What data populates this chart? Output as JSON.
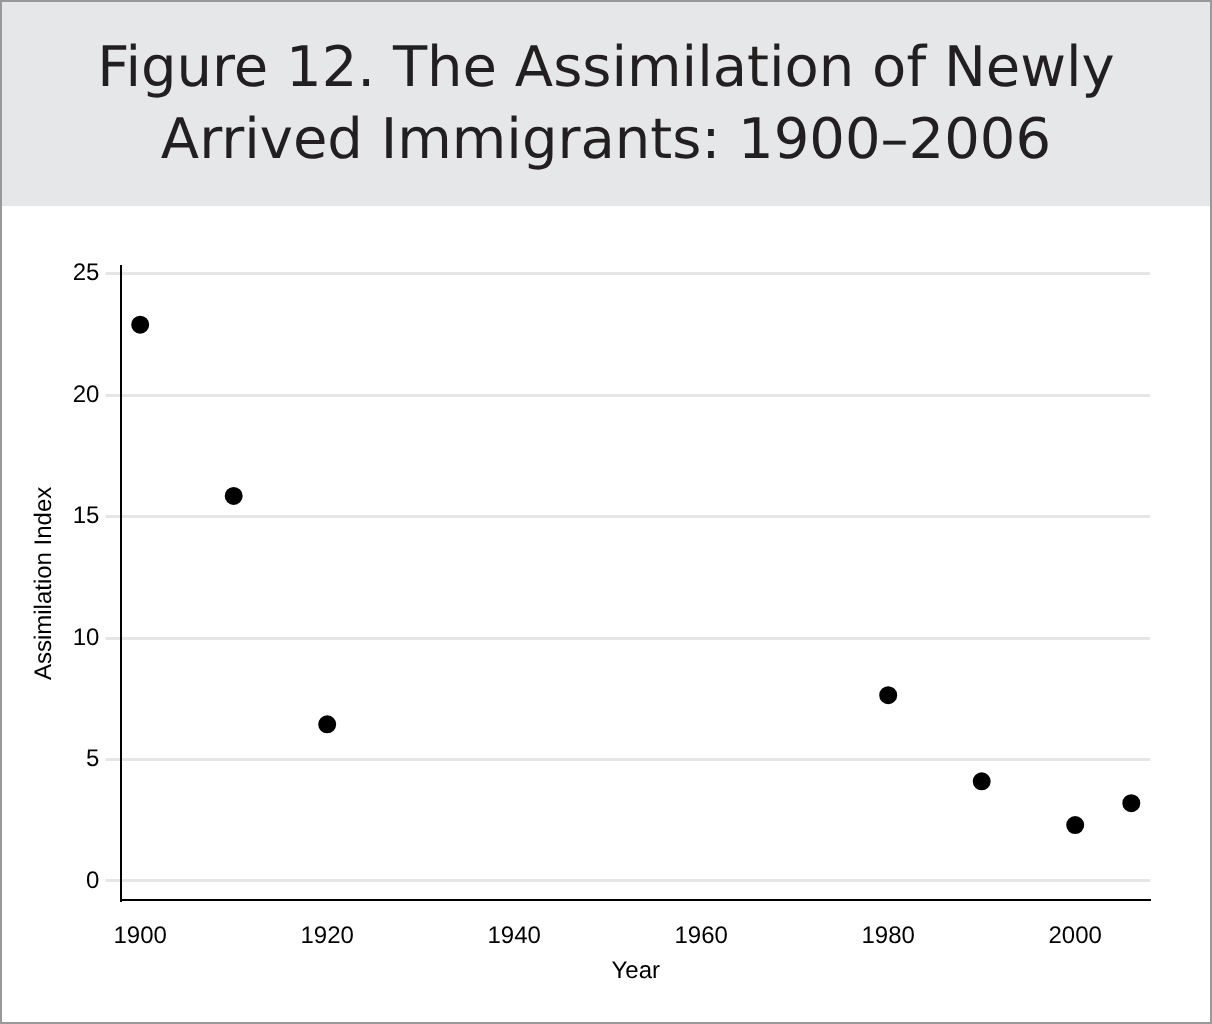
{
  "chart_data": {
    "type": "scatter",
    "title": "Figure 12. The Assimilation of Newly Arrived Immigrants: 1900–2006",
    "xlabel": "Year",
    "ylabel": "Assimilation Index",
    "x": [
      1900,
      1910,
      1920,
      1980,
      1990,
      2000,
      2006
    ],
    "series": [
      {
        "color": "#000000",
        "values": [
          22.9,
          15.85,
          6.45,
          7.65,
          4.1,
          2.3,
          3.2
        ]
      }
    ],
    "xlim": [
      1898,
      2008
    ],
    "xticks": [
      1900,
      1920,
      1940,
      1960,
      1980,
      2000
    ],
    "ylim": [
      -0.8,
      25.3
    ],
    "yticks": [
      0,
      5,
      10,
      15,
      20,
      25
    ],
    "grid": "y",
    "legend": false,
    "marker": "circle"
  }
}
